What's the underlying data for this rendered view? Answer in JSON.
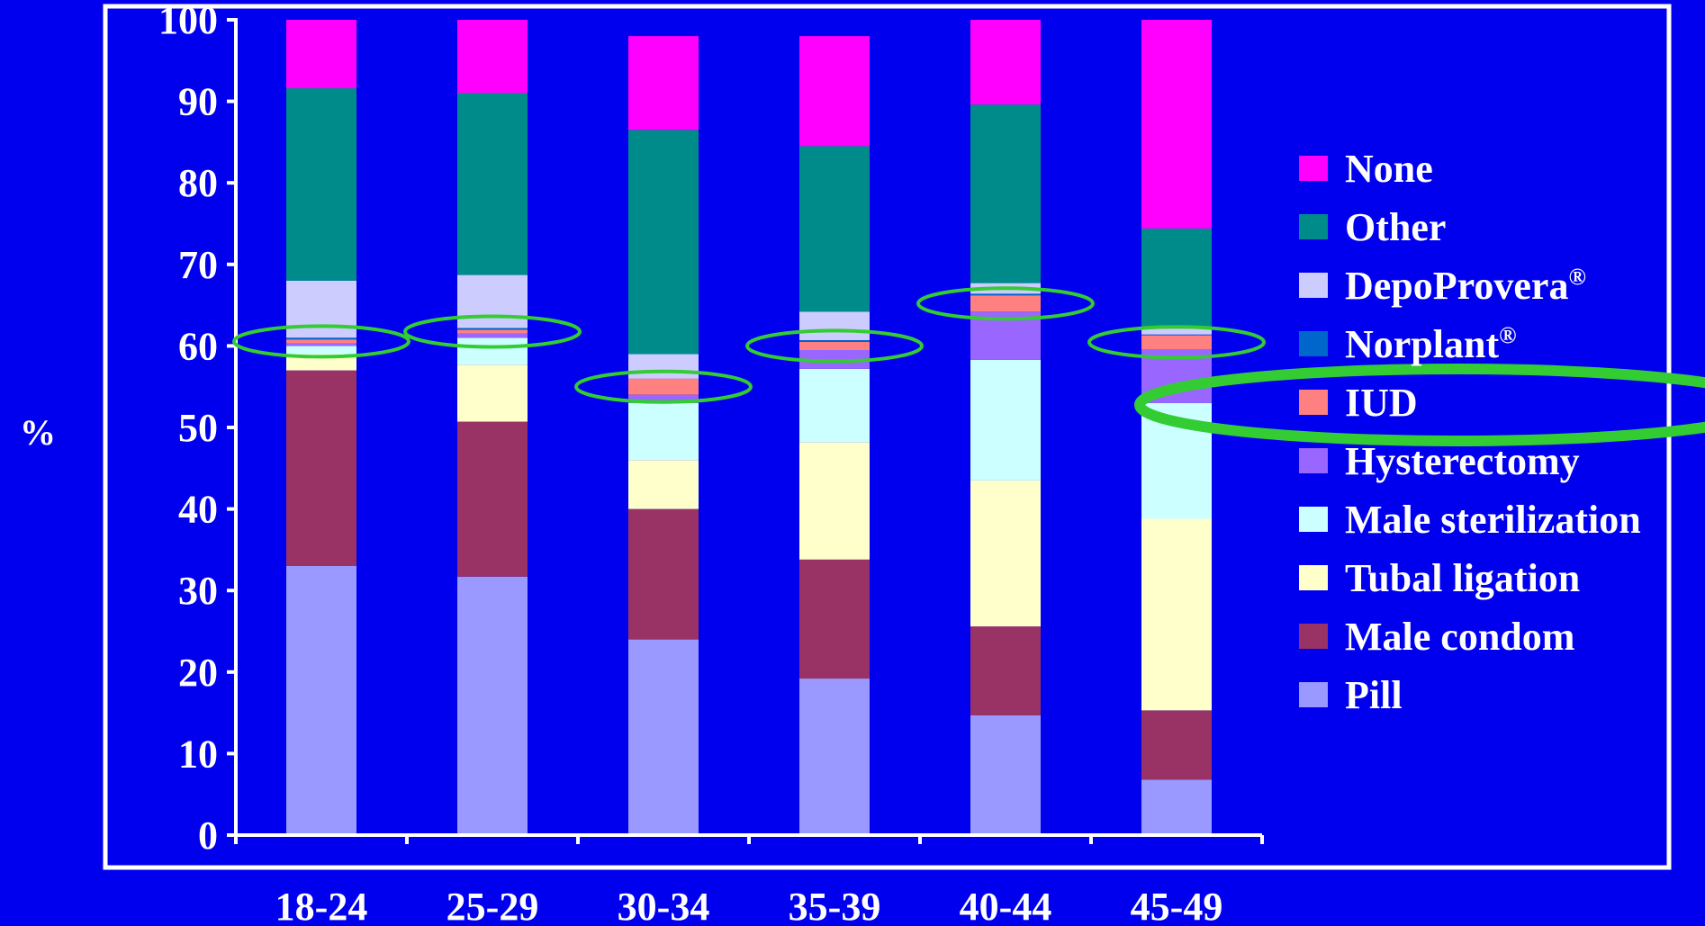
{
  "chart_data": {
    "type": "bar",
    "stacked": true,
    "title": "",
    "xlabel": "",
    "ylabel": "%",
    "ylim": [
      0,
      100
    ],
    "yticks": [
      "0",
      "10",
      "20",
      "30",
      "40",
      "50",
      "60",
      "70",
      "80",
      "90",
      "100"
    ],
    "categories": [
      "18-24",
      "25-29",
      "30-34",
      "35-39",
      "40-44",
      "45-49"
    ],
    "legend_position": "right",
    "series": [
      {
        "name": "Pill",
        "color": "#9999FF",
        "values": [
          33.0,
          31.7,
          24.0,
          19.2,
          14.7,
          6.8
        ]
      },
      {
        "name": "Male condom",
        "color": "#993366",
        "values": [
          24.0,
          19.0,
          16.0,
          14.6,
          10.9,
          8.5
        ]
      },
      {
        "name": "Tubal ligation",
        "color": "#FFFFCC",
        "values": [
          2.0,
          7.0,
          6.0,
          14.4,
          17.9,
          23.5
        ]
      },
      {
        "name": "Male sterilization",
        "color": "#CCFFFF",
        "values": [
          1.0,
          3.3,
          7.0,
          9.0,
          14.8,
          14.2
        ]
      },
      {
        "name": "Hysterectomy",
        "color": "#9966FF",
        "values": [
          0.3,
          0.5,
          1.0,
          2.3,
          5.9,
          6.6
        ]
      },
      {
        "name": "IUD",
        "color": "#FF8080",
        "values": [
          0.5,
          0.5,
          2.0,
          1.0,
          2.0,
          1.7
        ]
      },
      {
        "name": "Norplant",
        "name_sup": "®",
        "color": "#0066CC",
        "values": [
          0.2,
          0.2,
          0.0,
          0.2,
          0.2,
          0.1
        ]
      },
      {
        "name": "DepoProvera",
        "name_sup": "®",
        "color": "#CCCCFF",
        "values": [
          7.0,
          6.5,
          3.0,
          3.5,
          1.3,
          0.8
        ]
      },
      {
        "name": "Other",
        "color": "#008B8B",
        "values": [
          23.6,
          22.3,
          27.5,
          20.3,
          21.9,
          12.2
        ]
      },
      {
        "name": "None",
        "color": "#FF00FF",
        "values": [
          8.4,
          9.0,
          11.5,
          13.5,
          10.4,
          25.6
        ]
      }
    ],
    "legend_order": [
      "None",
      "Other",
      "DepoProvera",
      "Norplant",
      "IUD",
      "Hysterectomy",
      "Male sterilization",
      "Tubal ligation",
      "Male condom",
      "Pill"
    ],
    "highlights": [
      {
        "category": "18-24",
        "series": "IUD",
        "emphasis": "thin"
      },
      {
        "category": "25-29",
        "series": "IUD",
        "emphasis": "thin"
      },
      {
        "category": "30-34",
        "series": "IUD",
        "emphasis": "thin"
      },
      {
        "category": "35-39",
        "series": "IUD",
        "emphasis": "thin"
      },
      {
        "category": "40-44",
        "series": "IUD",
        "emphasis": "thin"
      },
      {
        "category": "45-49",
        "series": "IUD",
        "emphasis": "thin"
      },
      {
        "legend_entry": "IUD",
        "emphasis": "thick"
      }
    ],
    "colors": {
      "background": "#0000EE",
      "frame": "#FFFFFF",
      "highlight": "#33CC33"
    }
  }
}
